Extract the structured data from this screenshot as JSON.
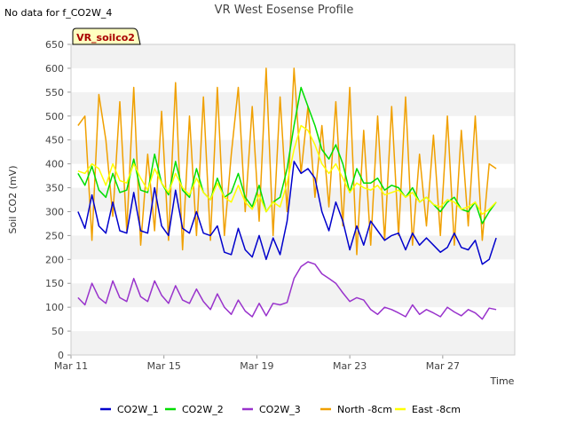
{
  "notice": "No data for f_CO2W_4",
  "chart_data": {
    "type": "line",
    "title": "VR West Eosense Profile",
    "xlabel": "Time",
    "ylabel": "Soil CO2 (mV)",
    "tag_label": "VR_soilco2",
    "ylim": [
      0,
      650
    ],
    "yticks": [
      0,
      50,
      100,
      150,
      200,
      250,
      300,
      350,
      400,
      450,
      500,
      550,
      600,
      650
    ],
    "xlim": [
      0,
      19.1
    ],
    "xticks": [
      {
        "x": 0,
        "label": "Mar 11"
      },
      {
        "x": 4,
        "label": "Mar 15"
      },
      {
        "x": 8,
        "label": "Mar 19"
      },
      {
        "x": 12,
        "label": "Mar 23"
      },
      {
        "x": 16,
        "label": "Mar 27"
      }
    ],
    "grid": "alternating horizontal bands",
    "legend_position": "bottom",
    "series": [
      {
        "name": "CO2W_1",
        "color": "#0000cc",
        "x": [
          0.3,
          0.6,
          0.9,
          1.2,
          1.5,
          1.8,
          2.1,
          2.4,
          2.7,
          3.0,
          3.3,
          3.6,
          3.9,
          4.2,
          4.5,
          4.8,
          5.1,
          5.4,
          5.7,
          6.0,
          6.3,
          6.6,
          6.9,
          7.2,
          7.5,
          7.8,
          8.1,
          8.4,
          8.7,
          9.0,
          9.3,
          9.6,
          9.9,
          10.2,
          10.5,
          10.8,
          11.1,
          11.4,
          11.7,
          12.0,
          12.3,
          12.6,
          12.9,
          13.2,
          13.5,
          13.8,
          14.1,
          14.4,
          14.7,
          15.0,
          15.3,
          15.6,
          15.9,
          16.2,
          16.5,
          16.8,
          17.1,
          17.4,
          17.7,
          18.0,
          18.3
        ],
        "y": [
          300,
          265,
          335,
          270,
          255,
          320,
          260,
          255,
          340,
          260,
          255,
          350,
          270,
          250,
          345,
          265,
          255,
          300,
          255,
          250,
          270,
          215,
          210,
          265,
          220,
          205,
          250,
          200,
          245,
          210,
          280,
          405,
          380,
          390,
          370,
          300,
          260,
          320,
          280,
          220,
          270,
          230,
          280,
          260,
          240,
          250,
          255,
          220,
          255,
          230,
          245,
          230,
          215,
          225,
          255,
          225,
          220,
          240,
          190,
          200,
          245
        ]
      },
      {
        "name": "CO2W_2",
        "color": "#00dd00",
        "x": [
          0.3,
          0.6,
          0.9,
          1.2,
          1.5,
          1.8,
          2.1,
          2.4,
          2.7,
          3.0,
          3.3,
          3.6,
          3.9,
          4.2,
          4.5,
          4.8,
          5.1,
          5.4,
          5.7,
          6.0,
          6.3,
          6.6,
          6.9,
          7.2,
          7.5,
          7.8,
          8.1,
          8.4,
          8.7,
          9.0,
          9.3,
          9.6,
          9.9,
          10.2,
          10.5,
          10.8,
          11.1,
          11.4,
          11.7,
          12.0,
          12.3,
          12.6,
          12.9,
          13.2,
          13.5,
          13.8,
          14.1,
          14.4,
          14.7,
          15.0,
          15.3,
          15.6,
          15.9,
          16.2,
          16.5,
          16.8,
          17.1,
          17.4,
          17.7,
          18.0,
          18.3
        ],
        "y": [
          380,
          355,
          395,
          345,
          330,
          380,
          340,
          345,
          410,
          345,
          340,
          420,
          360,
          335,
          405,
          345,
          330,
          390,
          340,
          325,
          370,
          330,
          340,
          380,
          330,
          310,
          355,
          300,
          320,
          330,
          390,
          480,
          560,
          520,
          480,
          430,
          410,
          440,
          400,
          340,
          390,
          360,
          360,
          370,
          345,
          355,
          350,
          330,
          350,
          320,
          330,
          315,
          300,
          320,
          330,
          305,
          300,
          320,
          275,
          300,
          320
        ]
      },
      {
        "name": "CO2W_3",
        "color": "#9933cc",
        "x": [
          0.3,
          0.6,
          0.9,
          1.2,
          1.5,
          1.8,
          2.1,
          2.4,
          2.7,
          3.0,
          3.3,
          3.6,
          3.9,
          4.2,
          4.5,
          4.8,
          5.1,
          5.4,
          5.7,
          6.0,
          6.3,
          6.6,
          6.9,
          7.2,
          7.5,
          7.8,
          8.1,
          8.4,
          8.7,
          9.0,
          9.3,
          9.6,
          9.9,
          10.2,
          10.5,
          10.8,
          11.1,
          11.4,
          11.7,
          12.0,
          12.3,
          12.6,
          12.9,
          13.2,
          13.5,
          13.8,
          14.1,
          14.4,
          14.7,
          15.0,
          15.3,
          15.6,
          15.9,
          16.2,
          16.5,
          16.8,
          17.1,
          17.4,
          17.7,
          18.0,
          18.3
        ],
        "y": [
          120,
          105,
          150,
          120,
          108,
          155,
          120,
          112,
          160,
          122,
          112,
          155,
          125,
          108,
          145,
          115,
          108,
          138,
          112,
          95,
          128,
          100,
          85,
          115,
          92,
          80,
          108,
          82,
          108,
          105,
          110,
          160,
          185,
          195,
          190,
          170,
          160,
          150,
          130,
          112,
          120,
          115,
          95,
          85,
          100,
          95,
          88,
          80,
          105,
          85,
          95,
          88,
          80,
          100,
          90,
          82,
          95,
          88,
          75,
          98,
          95
        ]
      },
      {
        "name": "North -8cm",
        "color": "#f0a000",
        "x": [
          0.3,
          0.6,
          0.9,
          1.2,
          1.5,
          1.8,
          2.1,
          2.4,
          2.7,
          3.0,
          3.3,
          3.6,
          3.9,
          4.2,
          4.5,
          4.8,
          5.1,
          5.4,
          5.7,
          6.0,
          6.3,
          6.6,
          6.9,
          7.2,
          7.5,
          7.8,
          8.1,
          8.4,
          8.7,
          9.0,
          9.3,
          9.6,
          9.9,
          10.2,
          10.5,
          10.8,
          11.1,
          11.4,
          11.7,
          12.0,
          12.3,
          12.6,
          12.9,
          13.2,
          13.5,
          13.8,
          14.1,
          14.4,
          14.7,
          15.0,
          15.3,
          15.6,
          15.9,
          16.2,
          16.5,
          16.8,
          17.1,
          17.4,
          17.7,
          18.0,
          18.3
        ],
        "y": [
          480,
          500,
          240,
          545,
          450,
          290,
          530,
          260,
          560,
          230,
          420,
          260,
          510,
          240,
          570,
          220,
          500,
          250,
          540,
          240,
          560,
          250,
          420,
          560,
          300,
          520,
          280,
          600,
          250,
          540,
          300,
          600,
          380,
          520,
          330,
          480,
          310,
          530,
          270,
          560,
          210,
          470,
          230,
          500,
          240,
          520,
          250,
          540,
          230,
          420,
          270,
          460,
          250,
          500,
          230,
          470,
          270,
          500,
          240,
          400,
          390
        ]
      },
      {
        "name": "East -8cm",
        "color": "#ffff00",
        "x": [
          0.3,
          0.6,
          0.9,
          1.2,
          1.5,
          1.8,
          2.1,
          2.4,
          2.7,
          3.0,
          3.3,
          3.6,
          3.9,
          4.2,
          4.5,
          4.8,
          5.1,
          5.4,
          5.7,
          6.0,
          6.3,
          6.6,
          6.9,
          7.2,
          7.5,
          7.8,
          8.1,
          8.4,
          8.7,
          9.0,
          9.3,
          9.6,
          9.9,
          10.2,
          10.5,
          10.8,
          11.1,
          11.4,
          11.7,
          12.0,
          12.3,
          12.6,
          12.9,
          13.2,
          13.5,
          13.8,
          14.1,
          14.4,
          14.7,
          15.0,
          15.3,
          15.6,
          15.9,
          16.2,
          16.5,
          16.8,
          17.1,
          17.4,
          17.7,
          18.0,
          18.3
        ],
        "y": [
          385,
          380,
          400,
          390,
          355,
          400,
          365,
          360,
          400,
          370,
          345,
          390,
          360,
          340,
          380,
          350,
          335,
          370,
          340,
          325,
          360,
          330,
          320,
          355,
          320,
          305,
          335,
          300,
          320,
          310,
          360,
          430,
          480,
          470,
          440,
          400,
          380,
          400,
          370,
          340,
          360,
          350,
          345,
          355,
          335,
          340,
          345,
          330,
          340,
          320,
          330,
          315,
          310,
          325,
          320,
          305,
          310,
          320,
          295,
          305,
          320
        ]
      }
    ]
  }
}
